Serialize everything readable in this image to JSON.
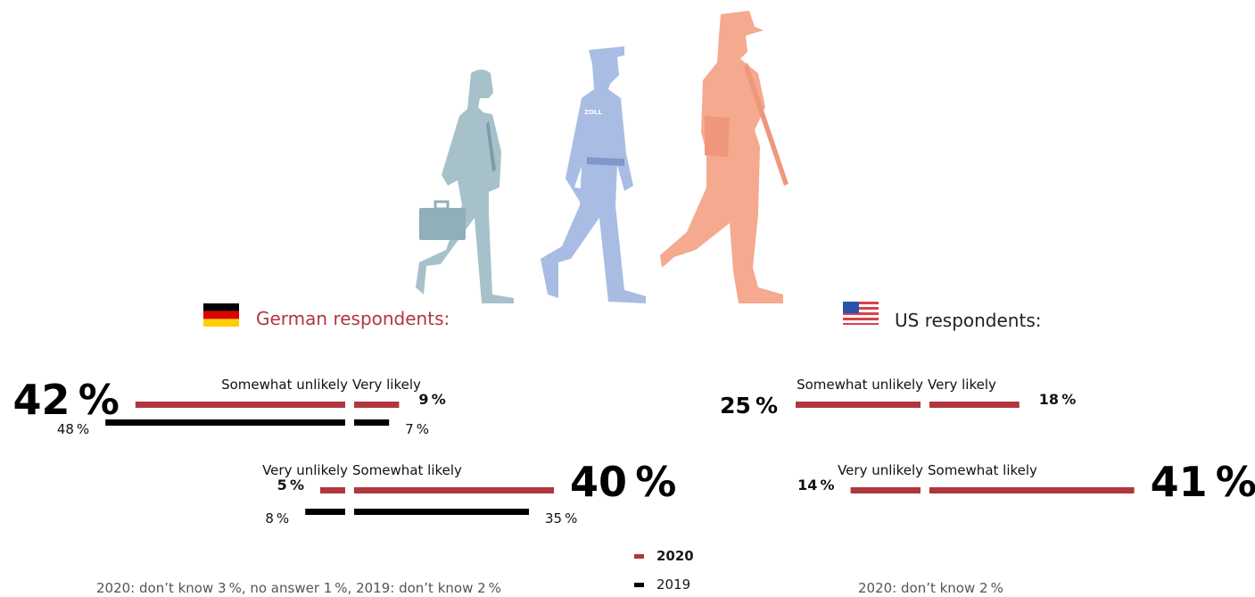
{
  "colors": {
    "accent": "#b0373f",
    "y2019": "#000000",
    "german_title": "#b0373f",
    "us_title": "#222222",
    "civilian": "#a7c1cb",
    "police": "#a9bce3",
    "soldier": "#f5a98f"
  },
  "illustration": {
    "icons": [
      "businessman-figure-icon",
      "customs-officer-figure-icon",
      "soldier-figure-icon"
    ],
    "badge_text": "ZOLL"
  },
  "german": {
    "title": "German respondents:",
    "flag_icon": "germany-flag-icon",
    "footnote": "2020: don’t know 3 %, no answer 1 %, 2019: don’t know 2 %"
  },
  "us": {
    "title": "US respondents:",
    "flag_icon": "usa-flag-icon",
    "footnote": "2020: don’t know 2 %"
  },
  "legend": {
    "y2020": "2020",
    "y2019": "2019"
  },
  "chart_data": [
    {
      "type": "bar",
      "group": "German respondents",
      "categories": [
        "Somewhat unlikely",
        "Very likely",
        "Very unlikely",
        "Somewhat likely"
      ],
      "series": [
        {
          "name": "2020",
          "values": [
            42,
            9,
            5,
            40
          ]
        },
        {
          "name": "2019",
          "values": [
            48,
            7,
            8,
            35
          ]
        }
      ]
    },
    {
      "type": "bar",
      "group": "US respondents",
      "categories": [
        "Somewhat unlikely",
        "Very likely",
        "Very unlikely",
        "Somewhat likely"
      ],
      "series": [
        {
          "name": "2020",
          "values": [
            25,
            18,
            14,
            41
          ]
        }
      ]
    }
  ]
}
